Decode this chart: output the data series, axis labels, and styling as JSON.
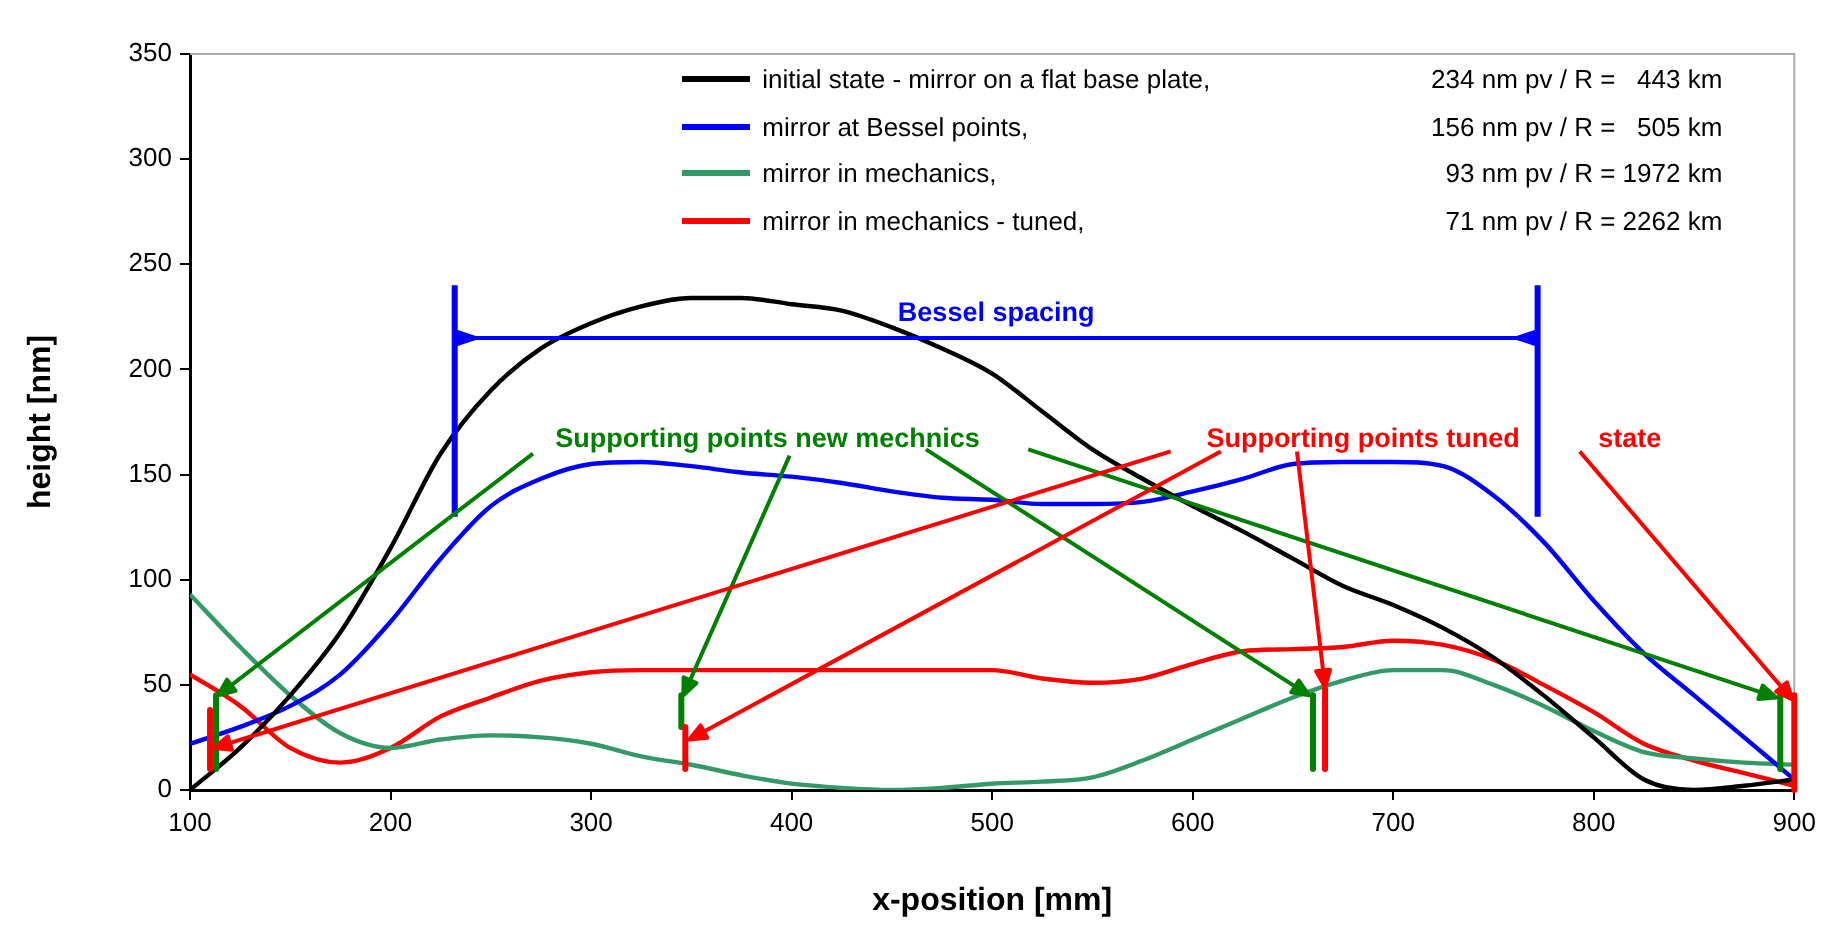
{
  "chart_data": {
    "type": "line",
    "xlabel": "x-position [mm]",
    "ylabel": "height [nm]",
    "xlim": [
      100,
      900
    ],
    "xticks": [
      100,
      200,
      300,
      400,
      500,
      600,
      700,
      800,
      900
    ],
    "ylim": [
      0,
      350
    ],
    "yticks": [
      0,
      50,
      100,
      150,
      200,
      250,
      300,
      350
    ],
    "grid": false,
    "legend": "top right",
    "marker": "none",
    "line_style": "solid",
    "x": [
      100,
      125,
      150,
      175,
      200,
      225,
      250,
      275,
      300,
      325,
      350,
      375,
      400,
      425,
      450,
      475,
      500,
      525,
      550,
      575,
      600,
      625,
      650,
      675,
      700,
      725,
      750,
      775,
      800,
      825,
      850,
      875,
      900
    ],
    "series": [
      {
        "name": "initial state - mirror on a flat base plate,",
        "color": "#000000",
        "values": [
          0,
          20,
          45,
          75,
          115,
          160,
          190,
          210,
          222,
          230,
          234,
          234,
          231,
          228,
          220,
          210,
          198,
          180,
          162,
          148,
          135,
          123,
          110,
          97,
          88,
          77,
          63,
          45,
          25,
          5,
          0,
          2,
          5
        ]
      },
      {
        "name": "mirror at Bessel points,",
        "color": "#0000ff",
        "values": [
          22,
          30,
          40,
          55,
          80,
          110,
          135,
          148,
          155,
          156,
          154,
          151,
          149,
          146,
          142,
          139,
          138,
          136,
          136,
          137,
          142,
          148,
          155,
          156,
          156,
          154,
          140,
          118,
          90,
          65,
          45,
          25,
          5
        ]
      },
      {
        "name": "mirror in mechanics,",
        "color": "#339966",
        "values": [
          93,
          68,
          45,
          27,
          20,
          24,
          26,
          25,
          22,
          16,
          12,
          7,
          3,
          1,
          0,
          1,
          3,
          4,
          6,
          14,
          24,
          34,
          44,
          52,
          57,
          57,
          50,
          40,
          28,
          18,
          15,
          13,
          12
        ]
      },
      {
        "name": "mirror in mechanics - tuned,",
        "color": "#ff0000",
        "values": [
          55,
          40,
          20,
          13,
          20,
          35,
          44,
          52,
          56,
          57,
          57,
          57,
          57,
          57,
          57,
          57,
          57,
          53,
          51,
          53,
          60,
          66,
          67,
          68,
          71,
          69,
          62,
          50,
          37,
          22,
          14,
          8,
          2
        ]
      }
    ],
    "annotations": [
      "234 nm pv / R =   443 km",
      "156 nm pv / R =   505 km",
      "93 nm pv / R = 1972 km",
      "71 nm pv / R = 2262 km",
      "Bessel spacing",
      "Supporting points new mechnics",
      "Supporting points tuned",
      "state"
    ]
  }
}
